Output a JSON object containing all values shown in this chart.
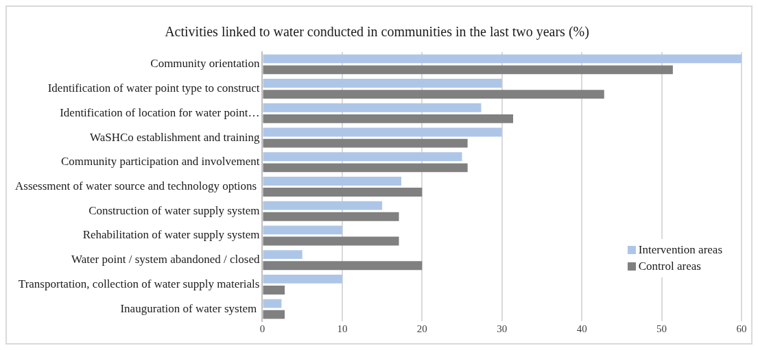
{
  "chart_data": {
    "type": "bar",
    "orientation": "horizontal",
    "title": "Activities linked to water conducted in communities in the last two years (%)",
    "categories": [
      "Community orientation",
      "Identification of water point type to construct",
      "Identification of location for water point…",
      "WaSHCo establishment and training",
      "Community participation and involvement",
      "Assessment of water source and technology options ",
      "Construction of water supply system",
      "Rehabilitation of water supply system",
      "Water point / system abandoned / closed",
      "Transportation, collection of water supply materials",
      "Inauguration of water system "
    ],
    "series": [
      {
        "name": "Intervention areas",
        "color": "#adc6e8",
        "values": [
          60,
          30,
          27.4,
          30,
          25,
          17.4,
          15,
          10,
          5,
          10,
          2.4
        ]
      },
      {
        "name": "Control areas",
        "color": "#808080",
        "values": [
          51.4,
          42.8,
          31.4,
          25.7,
          25.7,
          20,
          17.1,
          17.1,
          20,
          2.8,
          2.8
        ]
      }
    ],
    "xlim": [
      0,
      60
    ],
    "xticks": [
      0,
      10,
      20,
      30,
      40,
      50,
      60
    ],
    "grid": "x",
    "legend": "bottom right"
  }
}
